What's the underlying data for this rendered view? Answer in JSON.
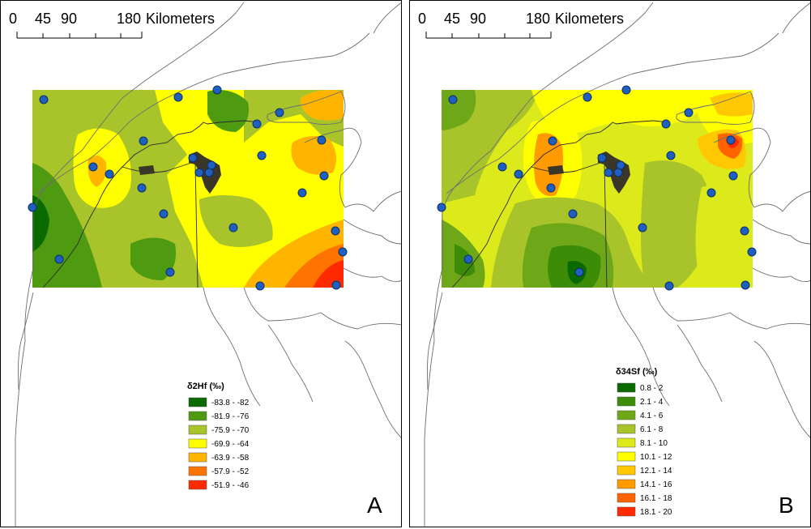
{
  "scale_bar": {
    "ticks": [
      "0",
      "45",
      "90",
      "180"
    ],
    "unit": "Kilometers"
  },
  "colors": {
    "coast": "#6e6e6e",
    "border": "#2b2b2b",
    "station": "#1f5fbf",
    "station_stroke": "#0d2f66",
    "city": "#3a3628"
  },
  "panels": [
    {
      "letter": "A",
      "legend_title": "δ2Hf (‰)",
      "legend": [
        {
          "label": "-83.8 - -82",
          "color": "#0a6a00"
        },
        {
          "label": "-81.9 - -76",
          "color": "#4e9a10"
        },
        {
          "label": "-75.9 - -70",
          "color": "#a8c42a"
        },
        {
          "label": "-69.9 - -64",
          "color": "#ffff00"
        },
        {
          "label": "-63.9 - -58",
          "color": "#ffb400"
        },
        {
          "label": "-57.9 - -52",
          "color": "#ff7300"
        },
        {
          "label": "-51.9 - -46",
          "color": "#ff2a00"
        }
      ]
    },
    {
      "letter": "B",
      "legend_title": "δ34Sf (‰)",
      "legend": [
        {
          "label": "0.8 - 2",
          "color": "#0a6a00"
        },
        {
          "label": "2.1 - 4",
          "color": "#3c8c08"
        },
        {
          "label": "4.1 - 6",
          "color": "#6ea818"
        },
        {
          "label": "6.1 - 8",
          "color": "#a8c42a"
        },
        {
          "label": "8.1 - 10",
          "color": "#dcea1c"
        },
        {
          "label": "10.1 - 12",
          "color": "#ffff00"
        },
        {
          "label": "12.1 - 14",
          "color": "#ffc800"
        },
        {
          "label": "14.1 - 16",
          "color": "#ff9a00"
        },
        {
          "label": "16.1 - 18",
          "color": "#ff6400"
        },
        {
          "label": "18.1 - 20",
          "color": "#ff2a00"
        }
      ]
    }
  ]
}
